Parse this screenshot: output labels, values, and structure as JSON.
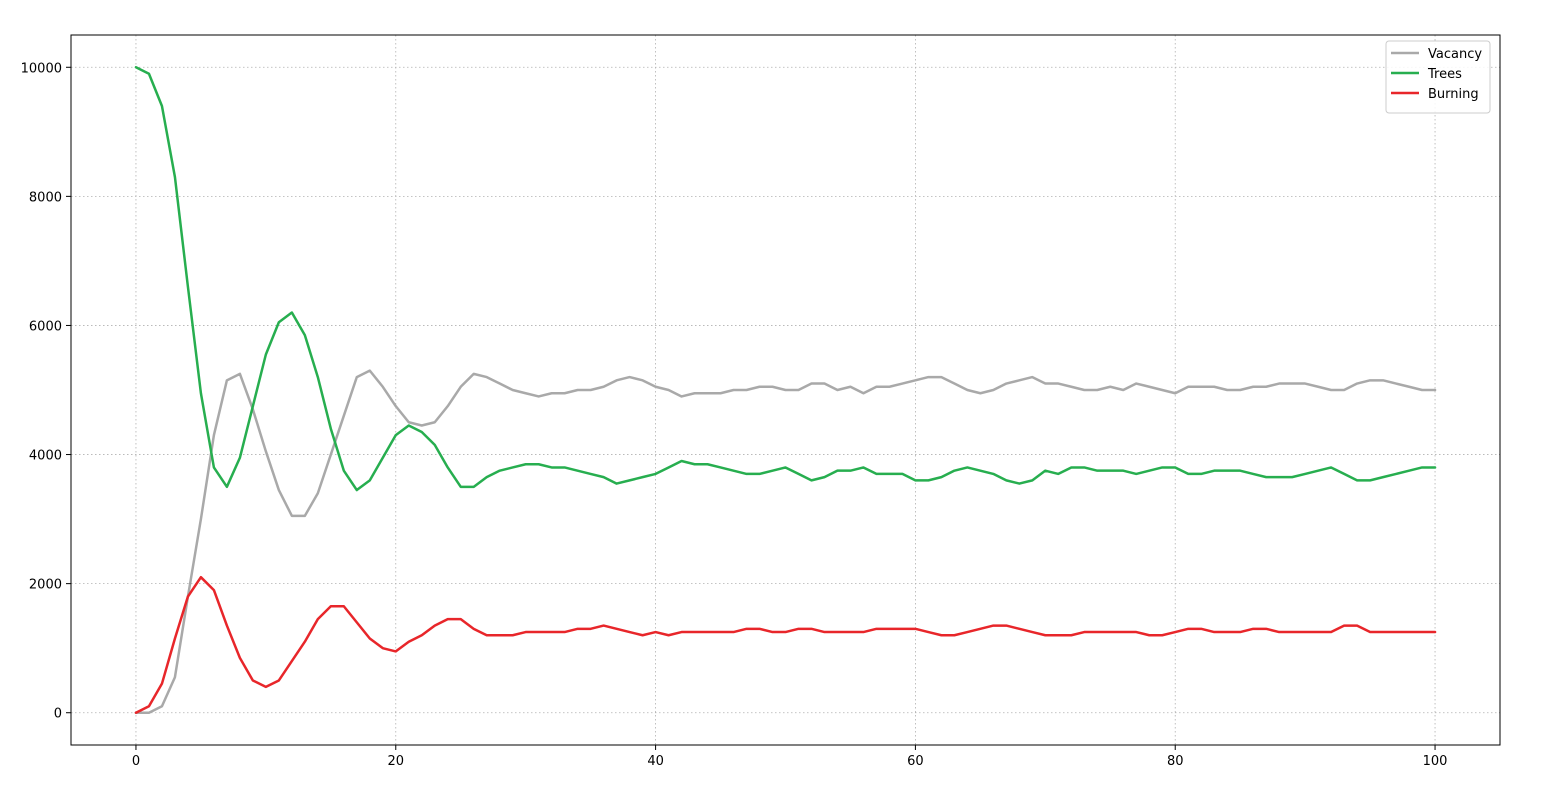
{
  "chart_data": {
    "type": "line",
    "title": "",
    "xlabel": "",
    "ylabel": "",
    "xlim": [
      -5,
      105
    ],
    "ylim": [
      -500,
      10500
    ],
    "xticks": [
      0,
      20,
      40,
      60,
      80,
      100
    ],
    "yticks": [
      0,
      2000,
      4000,
      6000,
      8000,
      10000
    ],
    "grid": true,
    "legend_position": "top-right",
    "x_start": 0,
    "x_step": 1,
    "series": [
      {
        "name": "Vacancy",
        "color": "#a9a9a9",
        "values": [
          0,
          0,
          100,
          550,
          1800,
          3000,
          4300,
          5150,
          5250,
          4700,
          4050,
          3450,
          3050,
          3050,
          3400,
          4000,
          4600,
          5200,
          5300,
          5050,
          4750,
          4500,
          4450,
          4500,
          4750,
          5050,
          5250,
          5200,
          5100,
          5000,
          4950,
          4900,
          4950,
          4950,
          5000,
          5000,
          5050,
          5150,
          5200,
          5150,
          5050,
          5000,
          4900,
          4950,
          4950,
          4950,
          5000,
          5000,
          5050,
          5050,
          5000,
          5000,
          5100,
          5100,
          5000,
          5050,
          4950,
          5050,
          5050,
          5100,
          5150,
          5200,
          5200,
          5100,
          5000,
          4950,
          5000,
          5100,
          5150,
          5200,
          5100,
          5100,
          5050,
          5000,
          5000,
          5050,
          5000,
          5100,
          5050,
          5000,
          4950,
          5050,
          5050,
          5050,
          5000,
          5000,
          5050,
          5050,
          5100,
          5100,
          5100,
          5050,
          5000,
          5000,
          5100,
          5150,
          5150,
          5100,
          5050,
          5000,
          5000
        ]
      },
      {
        "name": "Trees",
        "color": "#27ae4f",
        "values": [
          10000,
          9900,
          9400,
          8300,
          6600,
          4950,
          3800,
          3500,
          3950,
          4750,
          5550,
          6050,
          6200,
          5850,
          5200,
          4400,
          3750,
          3450,
          3600,
          3950,
          4300,
          4450,
          4350,
          4150,
          3800,
          3500,
          3500,
          3650,
          3750,
          3800,
          3850,
          3850,
          3800,
          3800,
          3750,
          3700,
          3650,
          3550,
          3600,
          3650,
          3700,
          3800,
          3900,
          3850,
          3850,
          3800,
          3750,
          3700,
          3700,
          3750,
          3800,
          3700,
          3600,
          3650,
          3750,
          3750,
          3800,
          3700,
          3700,
          3700,
          3600,
          3600,
          3650,
          3750,
          3800,
          3750,
          3700,
          3600,
          3550,
          3600,
          3750,
          3700,
          3800,
          3800,
          3750,
          3750,
          3750,
          3700,
          3750,
          3800,
          3800,
          3700,
          3700,
          3750,
          3750,
          3750,
          3700,
          3650,
          3650,
          3650,
          3700,
          3750,
          3800,
          3700,
          3600,
          3600,
          3650,
          3700,
          3750,
          3800,
          3800
        ]
      },
      {
        "name": "Burning",
        "color": "#e8262a",
        "values": [
          0,
          100,
          450,
          1150,
          1800,
          2100,
          1900,
          1350,
          850,
          500,
          400,
          500,
          800,
          1100,
          1450,
          1650,
          1650,
          1400,
          1150,
          1000,
          950,
          1100,
          1200,
          1350,
          1450,
          1450,
          1300,
          1200,
          1200,
          1200,
          1250,
          1250,
          1250,
          1250,
          1300,
          1300,
          1350,
          1300,
          1250,
          1200,
          1250,
          1200,
          1250,
          1250,
          1250,
          1250,
          1250,
          1300,
          1300,
          1250,
          1250,
          1300,
          1300,
          1250,
          1250,
          1250,
          1250,
          1300,
          1300,
          1300,
          1300,
          1250,
          1200,
          1200,
          1250,
          1300,
          1350,
          1350,
          1300,
          1250,
          1200,
          1200,
          1200,
          1250,
          1250,
          1250,
          1250,
          1250,
          1200,
          1200,
          1250,
          1300,
          1300,
          1250,
          1250,
          1250,
          1300,
          1300,
          1250,
          1250,
          1250,
          1250,
          1250,
          1350,
          1350,
          1250,
          1250,
          1250,
          1250,
          1250,
          1250
        ]
      }
    ]
  }
}
